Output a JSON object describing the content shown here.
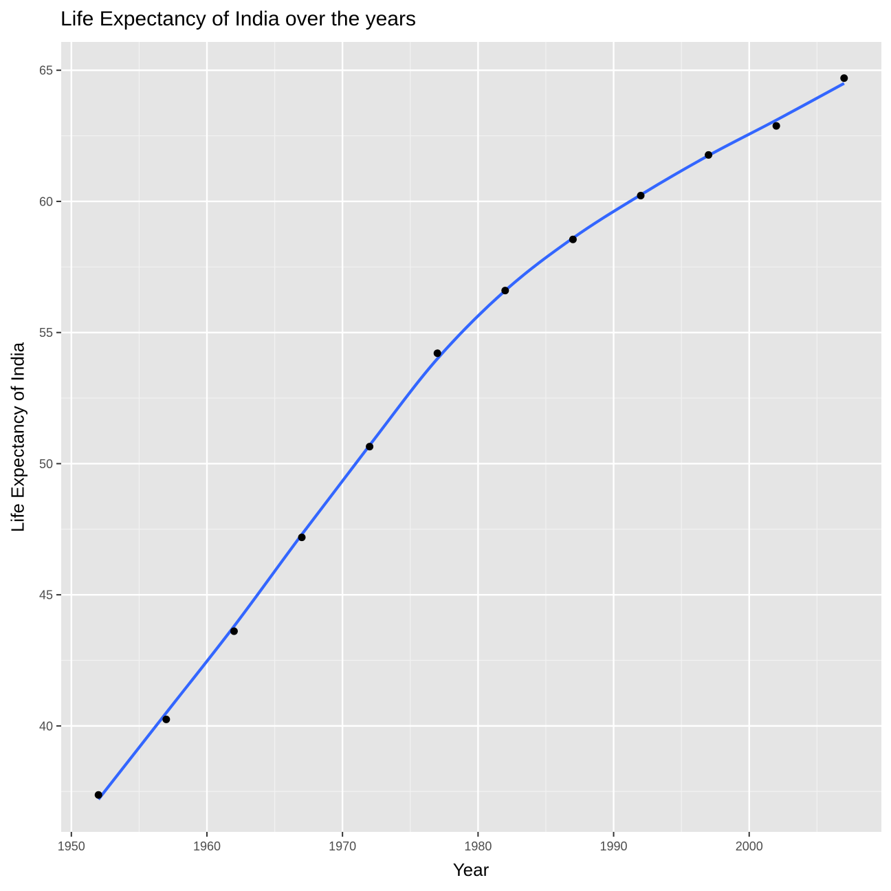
{
  "chart_data": {
    "type": "scatter",
    "title": "Life Expectancy of India over the years",
    "xlabel": "Year",
    "ylabel": "Life Expectancy of India",
    "xlim": [
      1949.25,
      2009.75
    ],
    "ylim": [
      35.96,
      66.08
    ],
    "x_ticks": [
      1950,
      1960,
      1970,
      1980,
      1990,
      2000
    ],
    "y_ticks": [
      40,
      45,
      50,
      55,
      60,
      65
    ],
    "grid": true,
    "legend": "none",
    "colors": {
      "panel_background": "#e5e5e5",
      "grid_major": "#ffffff",
      "grid_minor": "#f2f2f2",
      "points": "#000000",
      "smooth_line": "#3366ff"
    },
    "series": [
      {
        "kind": "points",
        "x": [
          1952,
          1957,
          1962,
          1967,
          1972,
          1977,
          1982,
          1987,
          1992,
          1997,
          2002,
          2007
        ],
        "y": [
          37.37,
          40.25,
          43.61,
          47.19,
          50.65,
          54.21,
          56.6,
          58.55,
          60.22,
          61.77,
          62.88,
          64.7
        ]
      },
      {
        "kind": "smooth",
        "x": [
          1952,
          1957,
          1962,
          1967,
          1972,
          1977,
          1982,
          1987,
          1992,
          1997,
          2002,
          2007
        ],
        "y": [
          37.2,
          40.5,
          43.8,
          47.3,
          50.7,
          54.0,
          56.6,
          58.6,
          60.25,
          61.75,
          63.1,
          64.5
        ]
      }
    ]
  }
}
